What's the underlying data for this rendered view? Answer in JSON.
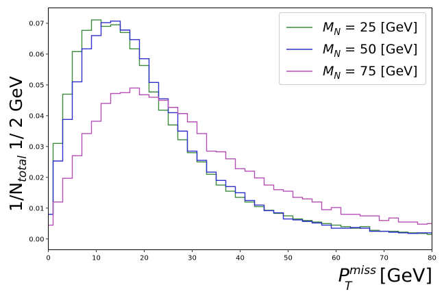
{
  "chart_data": {
    "type": "histogram",
    "xlabel": {
      "main": "P",
      "sub": "T",
      "sup": "miss",
      "unit": " [GeV]"
    },
    "ylabel": {
      "pre": "1/N",
      "sub": "total",
      "post": " 1/ 2 GeV"
    },
    "xlim": [
      0,
      80
    ],
    "ylim": [
      -0.0035,
      0.075
    ],
    "x_ticks": [
      0,
      10,
      20,
      30,
      40,
      50,
      60,
      70,
      80
    ],
    "y_ticks": [
      0.0,
      0.01,
      0.02,
      0.03,
      0.04,
      0.05,
      0.06,
      0.07
    ],
    "grid": false,
    "legend_position": "top-right",
    "bin_edges": [
      0,
      1,
      3,
      5,
      7,
      9,
      11,
      13,
      15,
      17,
      19,
      21,
      23,
      25,
      27,
      29,
      31,
      33,
      35,
      37,
      39,
      41,
      43,
      45,
      47,
      49,
      51,
      53,
      55,
      57,
      59,
      61,
      63,
      65,
      67,
      69,
      71,
      73,
      75,
      77,
      79,
      80
    ],
    "series": [
      {
        "label": {
          "pre": "M",
          "sub": "N",
          "post": " = 25 [GeV]"
        },
        "color": "#3a8a3a",
        "values": [
          0.008,
          0.031,
          0.047,
          0.0608,
          0.0677,
          0.0711,
          0.069,
          0.0695,
          0.067,
          0.0617,
          0.0563,
          0.0477,
          0.0418,
          0.037,
          0.0322,
          0.028,
          0.025,
          0.021,
          0.0175,
          0.0155,
          0.0135,
          0.012,
          0.0105,
          0.0093,
          0.0083,
          0.0075,
          0.0065,
          0.006,
          0.0055,
          0.005,
          0.0045,
          0.004,
          0.0035,
          0.004,
          0.0028,
          0.0025,
          0.0025,
          0.0022,
          0.002,
          0.0018,
          0.0015
        ]
      },
      {
        "label": {
          "pre": "M",
          "sub": "N",
          "post": " = 50 [GeV]"
        },
        "color": "#2f2fcc",
        "values": [
          0.008,
          0.0253,
          0.0388,
          0.051,
          0.0617,
          0.066,
          0.0702,
          0.0707,
          0.0678,
          0.0647,
          0.0585,
          0.0508,
          0.0455,
          0.041,
          0.035,
          0.0285,
          0.0255,
          0.0217,
          0.019,
          0.017,
          0.015,
          0.0125,
          0.011,
          0.0092,
          0.0085,
          0.0065,
          0.0062,
          0.0057,
          0.0052,
          0.0045,
          0.0035,
          0.0035,
          0.0037,
          0.0035,
          0.0025,
          0.0025,
          0.0022,
          0.002,
          0.0018,
          0.002,
          0.002
        ]
      },
      {
        "label": {
          "pre": "M",
          "sub": "N",
          "post": " = 75 [GeV]"
        },
        "color": "#b54fb5",
        "values": [
          0.0045,
          0.012,
          0.0197,
          0.027,
          0.0342,
          0.0382,
          0.044,
          0.0472,
          0.0475,
          0.049,
          0.0468,
          0.046,
          0.045,
          0.0427,
          0.0407,
          0.038,
          0.0342,
          0.0285,
          0.0283,
          0.026,
          0.0228,
          0.022,
          0.0198,
          0.0175,
          0.016,
          0.0155,
          0.0135,
          0.013,
          0.012,
          0.0095,
          0.0102,
          0.008,
          0.008,
          0.0075,
          0.0075,
          0.006,
          0.0068,
          0.0055,
          0.0055,
          0.0048,
          0.005
        ]
      }
    ]
  }
}
